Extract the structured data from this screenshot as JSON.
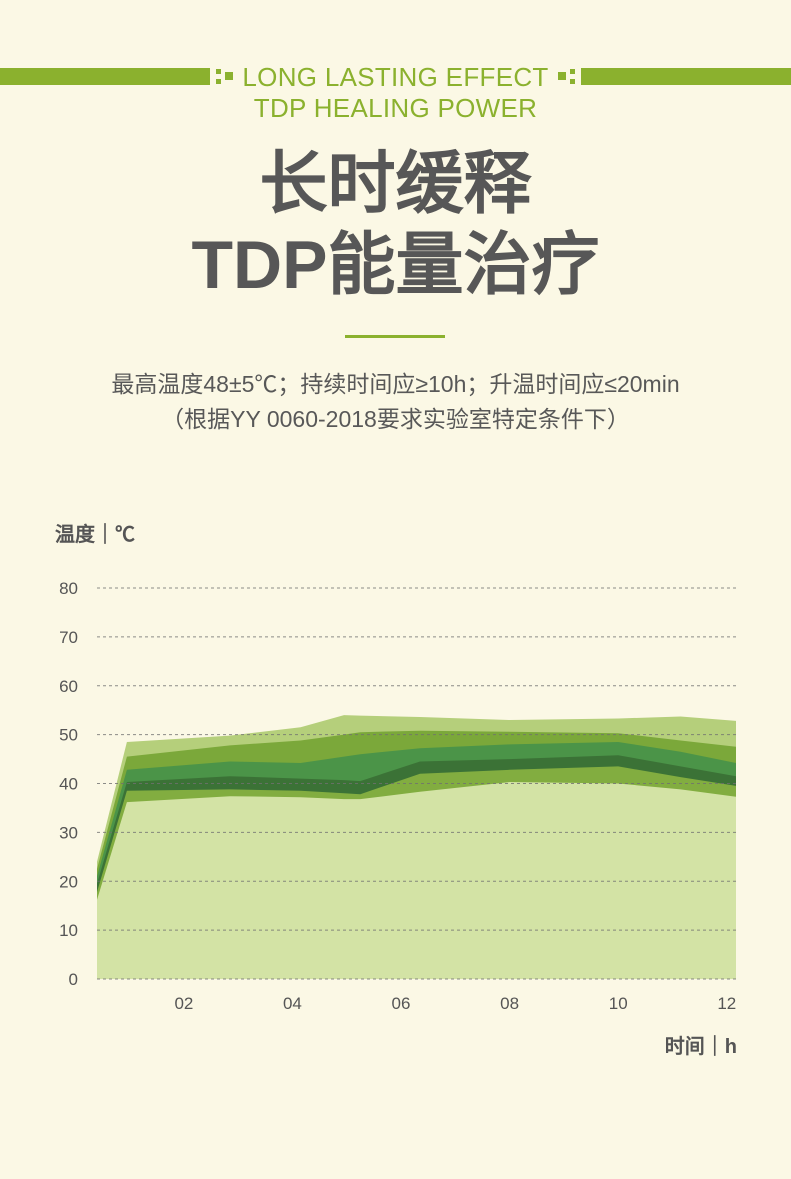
{
  "theme": {
    "background": "#fbf8e5",
    "accent": "#8bb12e",
    "text": "#575757"
  },
  "header": {
    "line1": "LONG LASTING EFFECT",
    "line2": "TDP HEALING POWER"
  },
  "title": {
    "line1": "长时缓释",
    "line2": "TDP能量治疗"
  },
  "description": {
    "spec": "最高温度48±5℃；持续时间应≥10h；升温时间应≤20min",
    "note": "（根据YY 0060-2018要求实验室特定条件下）"
  },
  "chart_data": {
    "type": "area",
    "title": "",
    "xlabel": "时间｜h",
    "ylabel": "温度｜℃",
    "xlim": [
      0.4,
      12.17
    ],
    "ylim": [
      0,
      80
    ],
    "xticks": [
      2,
      4,
      6,
      8,
      10,
      12
    ],
    "xtick_labels": [
      "02",
      "04",
      "06",
      "08",
      "10",
      "12"
    ],
    "yticks": [
      0,
      10,
      20,
      30,
      40,
      50,
      60,
      70,
      80
    ],
    "ytick_labels": [
      "0",
      "10",
      "20",
      "30",
      "40",
      "50",
      "60",
      "70",
      "80"
    ],
    "grid": true,
    "grid_color": "#707070",
    "x": [
      0.4,
      0.95,
      2.85,
      4.15,
      4.95,
      5.25,
      6.35,
      8.0,
      10.0,
      11.15,
      12.17
    ],
    "series": [
      {
        "color": "#b5cf7b",
        "values": [
          24,
          48.5,
          49.8,
          51.5,
          54,
          53.9,
          53.6,
          53,
          53.3,
          53.7,
          52.8
        ]
      },
      {
        "color": "#7ba83a",
        "values": [
          22.5,
          45.5,
          47.8,
          48.8,
          50,
          50.5,
          50.8,
          50.6,
          50.3,
          48.8,
          47.5
        ]
      },
      {
        "color": "#4b9448",
        "values": [
          21,
          42.8,
          44.5,
          44.2,
          45.5,
          46,
          47.2,
          48,
          48.5,
          46.5,
          44.2
        ]
      },
      {
        "color": "#3b7236",
        "values": [
          19.5,
          40.3,
          41.5,
          41,
          40.7,
          40.5,
          44.5,
          45,
          45.8,
          43.5,
          41.5
        ]
      },
      {
        "color": "#82ad40",
        "values": [
          17.8,
          38.5,
          38.8,
          38.5,
          38,
          37.8,
          42,
          42.8,
          43.5,
          41.3,
          39.5
        ]
      },
      {
        "color": "#d3e3a5",
        "values": [
          16.2,
          36.2,
          37.4,
          37.2,
          36.8,
          36.8,
          38.3,
          40.3,
          40,
          38.8,
          37.3
        ]
      }
    ]
  }
}
